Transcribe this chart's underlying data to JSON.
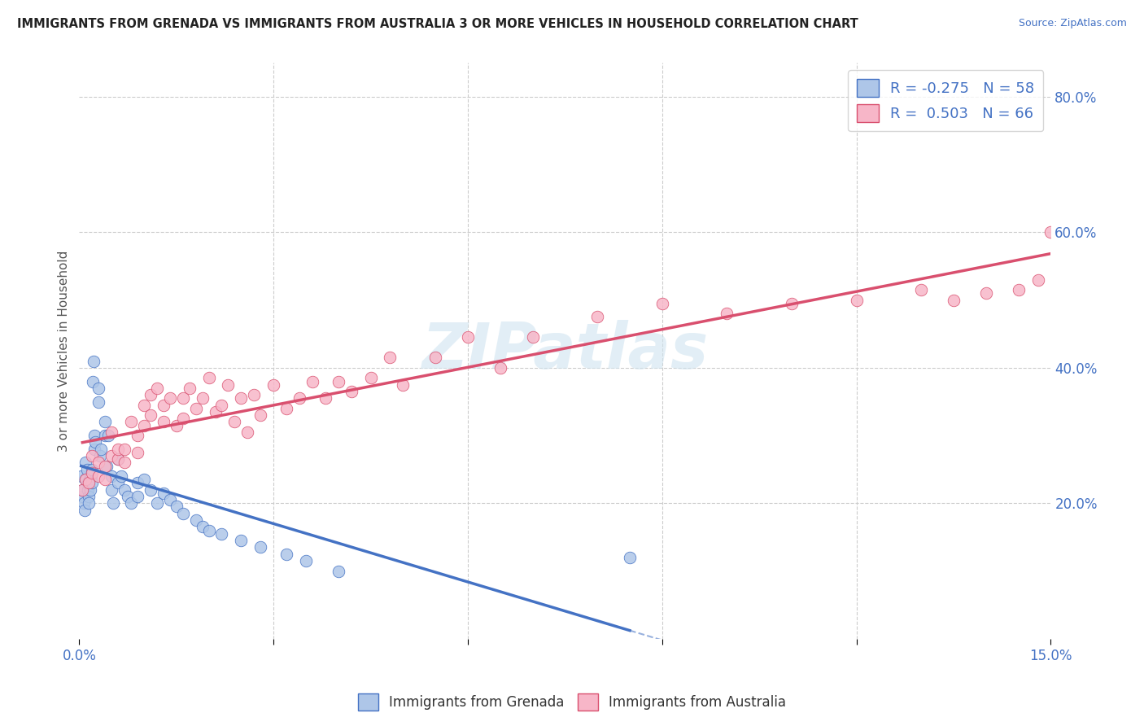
{
  "title": "IMMIGRANTS FROM GRENADA VS IMMIGRANTS FROM AUSTRALIA 3 OR MORE VEHICLES IN HOUSEHOLD CORRELATION CHART",
  "source": "Source: ZipAtlas.com",
  "ylabel_label": "3 or more Vehicles in Household",
  "xlim": [
    0.0,
    0.15
  ],
  "ylim": [
    0.0,
    0.85
  ],
  "R_grenada": -0.275,
  "N_grenada": 58,
  "R_australia": 0.503,
  "N_australia": 66,
  "legend_label_grenada": "Immigrants from Grenada",
  "legend_label_australia": "Immigrants from Australia",
  "color_grenada_fill": "#aec6e8",
  "color_australia_fill": "#f7b6c8",
  "color_grenada_edge": "#4472c4",
  "color_australia_edge": "#d94f6e",
  "background_color": "#ffffff",
  "grid_color": "#cccccc",
  "grenada_x": [
    0.0003,
    0.0005,
    0.0006,
    0.0007,
    0.0008,
    0.001,
    0.001,
    0.0012,
    0.0013,
    0.0014,
    0.0015,
    0.0015,
    0.0016,
    0.0017,
    0.0018,
    0.002,
    0.002,
    0.0021,
    0.0022,
    0.0023,
    0.0024,
    0.0025,
    0.003,
    0.003,
    0.0032,
    0.0034,
    0.004,
    0.004,
    0.0042,
    0.0045,
    0.005,
    0.005,
    0.0052,
    0.006,
    0.006,
    0.0065,
    0.007,
    0.0075,
    0.008,
    0.009,
    0.009,
    0.01,
    0.011,
    0.012,
    0.013,
    0.014,
    0.015,
    0.016,
    0.018,
    0.019,
    0.02,
    0.022,
    0.025,
    0.028,
    0.032,
    0.035,
    0.04,
    0.085
  ],
  "grenada_y": [
    0.24,
    0.21,
    0.22,
    0.2,
    0.19,
    0.235,
    0.26,
    0.25,
    0.23,
    0.22,
    0.21,
    0.2,
    0.235,
    0.22,
    0.24,
    0.23,
    0.25,
    0.38,
    0.41,
    0.3,
    0.28,
    0.29,
    0.35,
    0.37,
    0.27,
    0.28,
    0.3,
    0.32,
    0.255,
    0.3,
    0.24,
    0.22,
    0.2,
    0.265,
    0.23,
    0.24,
    0.22,
    0.21,
    0.2,
    0.23,
    0.21,
    0.235,
    0.22,
    0.2,
    0.215,
    0.205,
    0.195,
    0.185,
    0.175,
    0.165,
    0.16,
    0.155,
    0.145,
    0.135,
    0.125,
    0.115,
    0.1,
    0.12
  ],
  "australia_x": [
    0.0005,
    0.001,
    0.0015,
    0.002,
    0.002,
    0.003,
    0.003,
    0.004,
    0.004,
    0.005,
    0.005,
    0.006,
    0.006,
    0.007,
    0.007,
    0.008,
    0.009,
    0.009,
    0.01,
    0.01,
    0.011,
    0.011,
    0.012,
    0.013,
    0.013,
    0.014,
    0.015,
    0.016,
    0.016,
    0.017,
    0.018,
    0.019,
    0.02,
    0.021,
    0.022,
    0.023,
    0.024,
    0.025,
    0.026,
    0.027,
    0.028,
    0.03,
    0.032,
    0.034,
    0.036,
    0.038,
    0.04,
    0.042,
    0.045,
    0.048,
    0.05,
    0.055,
    0.06,
    0.065,
    0.07,
    0.08,
    0.09,
    0.1,
    0.11,
    0.12,
    0.13,
    0.135,
    0.14,
    0.145,
    0.148,
    0.15
  ],
  "australia_y": [
    0.22,
    0.235,
    0.23,
    0.245,
    0.27,
    0.26,
    0.24,
    0.255,
    0.235,
    0.27,
    0.305,
    0.265,
    0.28,
    0.28,
    0.26,
    0.32,
    0.3,
    0.275,
    0.345,
    0.315,
    0.36,
    0.33,
    0.37,
    0.345,
    0.32,
    0.355,
    0.315,
    0.355,
    0.325,
    0.37,
    0.34,
    0.355,
    0.385,
    0.335,
    0.345,
    0.375,
    0.32,
    0.355,
    0.305,
    0.36,
    0.33,
    0.375,
    0.34,
    0.355,
    0.38,
    0.355,
    0.38,
    0.365,
    0.385,
    0.415,
    0.375,
    0.415,
    0.445,
    0.4,
    0.445,
    0.475,
    0.495,
    0.48,
    0.495,
    0.5,
    0.515,
    0.5,
    0.51,
    0.515,
    0.53,
    0.6
  ]
}
